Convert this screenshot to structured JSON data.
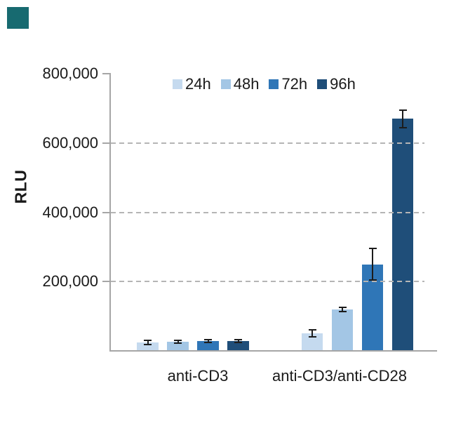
{
  "brand": {
    "logo_color": "#176a70"
  },
  "chart_data": {
    "type": "bar",
    "title": "",
    "ylabel": "RLU",
    "xlabel": "",
    "categories": [
      "anti-CD3",
      "anti-CD3/anti-CD28"
    ],
    "series": [
      {
        "name": "24h",
        "color": "#c5daef",
        "values": [
          25000,
          50000
        ],
        "errors": [
          6000,
          10000
        ]
      },
      {
        "name": "48h",
        "color": "#a3c6e5",
        "values": [
          27000,
          120000
        ],
        "errors": [
          4000,
          6000
        ]
      },
      {
        "name": "72h",
        "color": "#2f76b7",
        "values": [
          28000,
          250000
        ],
        "errors": [
          4000,
          45000
        ]
      },
      {
        "name": "96h",
        "color": "#1f4e79",
        "values": [
          28000,
          670000
        ],
        "errors": [
          4000,
          25000
        ]
      }
    ],
    "yticks": [
      200000,
      400000,
      600000,
      800000
    ],
    "ytick_labels": [
      "200,000",
      "400,000",
      "600,000",
      "800,000"
    ],
    "ylim": [
      0,
      800000
    ],
    "grid": {
      "horizontal": "dashed",
      "at": [
        200000,
        400000,
        600000
      ]
    },
    "legend": {
      "position": "top",
      "entries": [
        "24h",
        "48h",
        "72h",
        "96h"
      ]
    },
    "colors": {
      "axis": "#a6a6a6",
      "grid": "#b5b5b5",
      "text": "#1a1a1a",
      "error_bar": "#1c1c1c",
      "background": "#ffffff"
    }
  }
}
